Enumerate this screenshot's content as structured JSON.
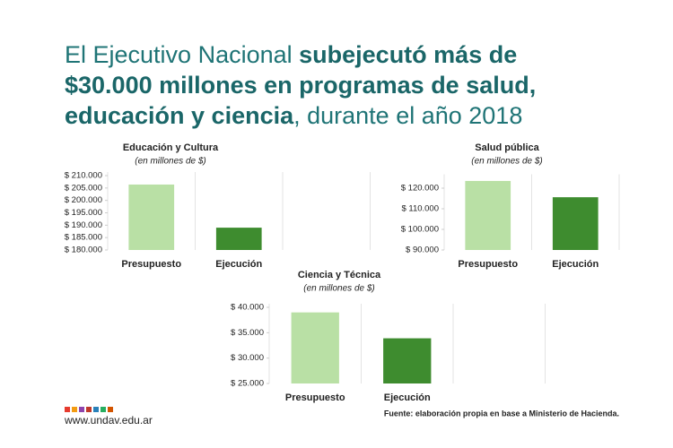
{
  "header": {
    "title_lines": [
      [
        {
          "text": "El Ejecutivo Nacional ",
          "bold": false
        },
        {
          "text": "subejecutó más de",
          "bold": true
        }
      ],
      [
        {
          "text": "$30.000 millones en programas de salud,",
          "bold": true
        }
      ],
      [
        {
          "text": "educación y ciencia",
          "bold": true
        },
        {
          "text": ", durante el año 2018",
          "bold": false
        }
      ]
    ]
  },
  "chart_data": [
    {
      "type": "bar",
      "title": "Educación y Cultura",
      "subtitle": "(en millones de $)",
      "categories": [
        "Presupuesto",
        "Ejecución"
      ],
      "values": [
        206400,
        189000
      ],
      "colors": [
        "#b9e0a5",
        "#3e8c2f"
      ],
      "ylim": [
        180000,
        210000
      ],
      "yticks": [
        {
          "value": 180000,
          "label": "$ 180.000"
        },
        {
          "value": 185000,
          "label": "$ 185.000"
        },
        {
          "value": 190000,
          "label": "$ 190.000"
        },
        {
          "value": 195000,
          "label": "$ 195.000"
        },
        {
          "value": 200000,
          "label": "$ 200.000"
        },
        {
          "value": 205000,
          "label": "$ 205.000"
        },
        {
          "value": 210000,
          "label": "$ 210.000"
        }
      ]
    },
    {
      "type": "bar",
      "title": "Salud pública",
      "subtitle": "(en millones de $)",
      "categories": [
        "Presupuesto",
        "Ejecución"
      ],
      "values": [
        123500,
        115600
      ],
      "colors": [
        "#b9e0a5",
        "#3e8c2f"
      ],
      "ylim": [
        90000,
        125000
      ],
      "yticks": [
        {
          "value": 90000,
          "label": "$ 90.000"
        },
        {
          "value": 100000,
          "label": "$ 100.000"
        },
        {
          "value": 110000,
          "label": "$ 110.000"
        },
        {
          "value": 120000,
          "label": "$ 120.000"
        }
      ]
    },
    {
      "type": "bar",
      "title": "Ciencia y Técnica",
      "subtitle": "(en millones de $)",
      "categories": [
        "Presupuesto",
        "Ejecución"
      ],
      "values": [
        39000,
        33900
      ],
      "colors": [
        "#b9e0a5",
        "#3e8c2f"
      ],
      "ylim": [
        25000,
        40000
      ],
      "yticks": [
        {
          "value": 25000,
          "label": "$ 25.000"
        },
        {
          "value": 30000,
          "label": "$ 30.000"
        },
        {
          "value": 35000,
          "label": "$ 35.000"
        },
        {
          "value": 40000,
          "label": "$ 40.000"
        }
      ]
    }
  ],
  "footer": {
    "url": "www.undav.edu.ar",
    "source": "Fuente: elaboración propia en base a Ministerio de Hacienda."
  }
}
